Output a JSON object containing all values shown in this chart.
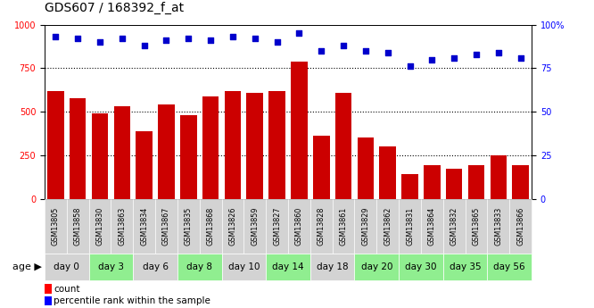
{
  "title": "GDS607 / 168392_f_at",
  "samples": [
    "GSM13805",
    "GSM13858",
    "GSM13830",
    "GSM13863",
    "GSM13834",
    "GSM13867",
    "GSM13835",
    "GSM13868",
    "GSM13826",
    "GSM13859",
    "GSM13827",
    "GSM13860",
    "GSM13828",
    "GSM13861",
    "GSM13829",
    "GSM13862",
    "GSM13831",
    "GSM13864",
    "GSM13832",
    "GSM13865",
    "GSM13833",
    "GSM13866"
  ],
  "bar_values": [
    620,
    575,
    490,
    530,
    390,
    540,
    480,
    590,
    620,
    610,
    620,
    790,
    360,
    610,
    350,
    300,
    140,
    195,
    170,
    195,
    250,
    195
  ],
  "percentile_values": [
    93,
    92,
    90,
    92,
    88,
    91,
    92,
    91,
    93,
    92,
    90,
    95,
    85,
    88,
    85,
    84,
    76,
    80,
    81,
    83,
    84,
    81
  ],
  "age_groups": [
    {
      "label": "day 0",
      "start": 0,
      "end": 2,
      "color": "#d3d3d3"
    },
    {
      "label": "day 3",
      "start": 2,
      "end": 4,
      "color": "#90ee90"
    },
    {
      "label": "day 6",
      "start": 4,
      "end": 6,
      "color": "#d3d3d3"
    },
    {
      "label": "day 8",
      "start": 6,
      "end": 8,
      "color": "#90ee90"
    },
    {
      "label": "day 10",
      "start": 8,
      "end": 10,
      "color": "#d3d3d3"
    },
    {
      "label": "day 14",
      "start": 10,
      "end": 12,
      "color": "#90ee90"
    },
    {
      "label": "day 18",
      "start": 12,
      "end": 14,
      "color": "#d3d3d3"
    },
    {
      "label": "day 20",
      "start": 14,
      "end": 16,
      "color": "#90ee90"
    },
    {
      "label": "day 30",
      "start": 16,
      "end": 18,
      "color": "#90ee90"
    },
    {
      "label": "day 35",
      "start": 18,
      "end": 20,
      "color": "#90ee90"
    },
    {
      "label": "day 56",
      "start": 20,
      "end": 22,
      "color": "#90ee90"
    }
  ],
  "bar_color": "#cc0000",
  "dot_color": "#0000cc",
  "ylim_left": [
    0,
    1000
  ],
  "ylim_right": [
    0,
    100
  ],
  "yticks_left": [
    0,
    250,
    500,
    750,
    1000
  ],
  "yticks_right": [
    0,
    25,
    50,
    75,
    100
  ],
  "grid_values": [
    250,
    500,
    750
  ],
  "legend_count_label": "count",
  "legend_pct_label": "percentile rank within the sample",
  "age_label": "age",
  "sample_bg_color": "#d3d3d3",
  "title_fontsize": 10,
  "tick_fontsize": 7,
  "sample_fontsize": 5.8,
  "age_fontsize": 7.5,
  "legend_fontsize": 7.5
}
